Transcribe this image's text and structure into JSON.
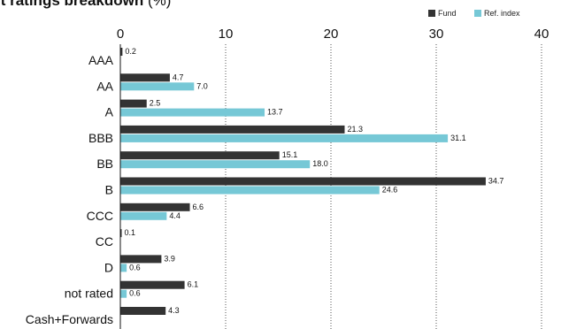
{
  "chart_data": {
    "type": "bar",
    "orientation": "horizontal",
    "title": "it ratings breakdown",
    "title_unit": "(%)",
    "xlim": [
      0,
      42
    ],
    "xticks": [
      "0",
      "10",
      "20",
      "30",
      "40"
    ],
    "grid": "vertical dotted",
    "legend_position": "top-right",
    "categories": [
      "AAA",
      "AA",
      "A",
      "BBB",
      "BB",
      "B",
      "CCC",
      "CC",
      "D",
      "not rated",
      "Cash+Forwards"
    ],
    "series": [
      {
        "name": "Fund",
        "color": "#333333",
        "values": [
          0.2,
          4.7,
          2.5,
          21.3,
          15.1,
          34.7,
          6.6,
          0.1,
          3.9,
          6.1,
          4.3
        ],
        "labels": [
          "0.2",
          "4.7",
          "2.5",
          "21.3",
          "15.1",
          "34.7",
          "6.6",
          "0.1",
          "3.9",
          "6.1",
          "4.3"
        ]
      },
      {
        "name": "Ref. index",
        "color": "#76c8d6",
        "values": [
          null,
          7.0,
          13.7,
          31.1,
          18.0,
          24.6,
          4.4,
          null,
          0.6,
          0.6,
          null
        ],
        "labels": [
          null,
          "7.0",
          "13.7",
          "31.1",
          "18.0",
          "24.6",
          "4.4",
          null,
          "0.6",
          "0.6",
          null
        ]
      }
    ]
  }
}
